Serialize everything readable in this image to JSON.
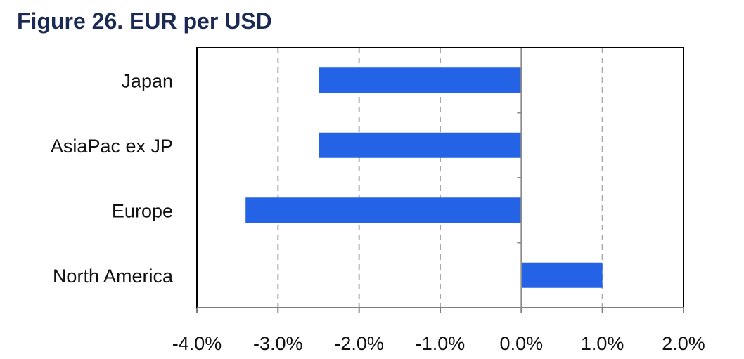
{
  "title": "Figure 26. EUR per USD",
  "chart_data": {
    "type": "bar",
    "orientation": "horizontal",
    "title": "Figure 26. EUR per USD",
    "categories": [
      "Japan",
      "AsiaPac ex JP",
      "Europe",
      "North America"
    ],
    "values": [
      -2.5,
      -2.5,
      -3.4,
      1.0
    ],
    "unit": "%",
    "xlim": [
      -4.0,
      2.0
    ],
    "xticks": [
      -4.0,
      -3.0,
      -2.0,
      -1.0,
      0.0,
      1.0,
      2.0
    ],
    "xtick_labels": [
      "-4.0%",
      "-3.0%",
      "-2.0%",
      "-1.0%",
      "0.0%",
      "1.0%",
      "2.0%"
    ],
    "grid": "vertical dashed",
    "legend": "none",
    "bar_color": "#2563e6",
    "xlabel": "",
    "ylabel": ""
  }
}
